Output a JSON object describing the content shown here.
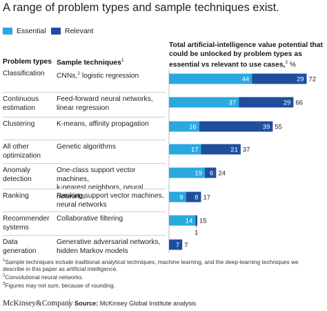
{
  "title": "A range of problem types and sample techniques exist.",
  "legend": [
    {
      "label": "Essential",
      "color": "#2aa8e0"
    },
    {
      "label": "Relevant",
      "color": "#1f4e9e"
    }
  ],
  "headers": {
    "problem_types": "Problem types",
    "sample_techniques": "Sample techniques",
    "sample_techniques_note": "1",
    "chart_heading": "Total artificial-intelligence value potential that could be unlocked by problem types as essential vs relevant to use cases,",
    "chart_heading_note": "3",
    "chart_heading_unit": " %"
  },
  "rows": [
    {
      "problem": [
        "Classification"
      ],
      "techniques": [
        "CNNs,",
        "2",
        " logistic regression"
      ]
    },
    {
      "problem": [
        "Continuous",
        "estimation"
      ],
      "techniques": [
        "Feed-forward neural networks,",
        "linear regression"
      ]
    },
    {
      "problem": [
        "Clustering"
      ],
      "techniques": [
        "K-means, affinity propagation"
      ]
    },
    {
      "problem": [
        "All other",
        "optimization"
      ],
      "techniques": [
        "Genetic algorithms"
      ]
    },
    {
      "problem": [
        "Anomaly",
        "detection"
      ],
      "techniques": [
        "One-class support vector machines,",
        "k-nearest neighbors, neural networks"
      ]
    },
    {
      "problem": [
        "Ranking"
      ],
      "techniques": [
        "Ranking support vector machines,",
        "neural networks"
      ]
    },
    {
      "problem": [
        "Recommender",
        "systems"
      ],
      "techniques": [
        "Collaborative filtering"
      ]
    },
    {
      "problem": [
        "Data",
        "generation"
      ],
      "techniques": [
        "Generative adversarial networks,",
        "hidden Markov models"
      ]
    }
  ],
  "chart_data": {
    "type": "bar",
    "orientation": "horizontal",
    "stacked": true,
    "categories": [
      "Classification",
      "Continuous estimation",
      "Clustering",
      "All other optimization",
      "Anomaly detection",
      "Ranking",
      "Recommender systems",
      "Data generation"
    ],
    "series": [
      {
        "name": "Essential",
        "color": "#2aa8e0",
        "values": [
          44,
          37,
          16,
          17,
          19,
          9,
          14,
          0
        ]
      },
      {
        "name": "Relevant",
        "color": "#1f4e9e",
        "values": [
          29,
          29,
          39,
          21,
          6,
          8,
          1,
          7
        ]
      }
    ],
    "totals": [
      72,
      66,
      55,
      37,
      24,
      17,
      15,
      7
    ],
    "segment_labels": {
      "Essential": [
        "44",
        "37",
        "16",
        "17",
        "19",
        "9",
        "14",
        ""
      ],
      "Relevant": [
        "29",
        "29",
        "39",
        "21",
        "6",
        "8",
        "",
        "7"
      ]
    },
    "below_labels": [
      "",
      "",
      "",
      "",
      "",
      "",
      "1",
      ""
    ],
    "xlim": [
      0,
      75
    ],
    "grid": false,
    "legend_position": "top-left"
  },
  "footnotes": [
    "Sample techniques include traditional analytical techniques, machine learning, and the deep-learning techniques we",
    "describe in this paper as artificial intelligence.",
    "Convolutional neural networks.",
    "Figures may not sum, because of rounding."
  ],
  "footnote_marks": [
    "1",
    "",
    "2",
    "3"
  ],
  "brand": "McKinsey&Company",
  "source_label": "Source:",
  "source_text": " McKinsey Global Institute analysis"
}
